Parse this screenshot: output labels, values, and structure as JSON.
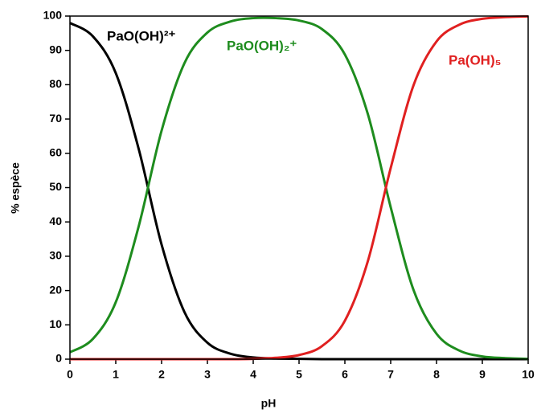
{
  "chart_data": {
    "type": "line",
    "xlabel": "pH",
    "ylabel": "% espèce",
    "x": [
      0,
      0.5,
      1,
      1.5,
      2,
      2.5,
      3,
      3.5,
      4,
      4.5,
      5,
      5.5,
      6,
      6.5,
      7,
      7.5,
      8,
      8.5,
      9,
      9.5,
      10
    ],
    "series": [
      {
        "name": "PaO(OH)²⁺",
        "color": "#000000",
        "values": [
          98.0,
          94.1,
          83.4,
          61.3,
          33.4,
          13.7,
          4.8,
          1.6,
          0.5,
          0.2,
          0.1,
          0,
          0,
          0,
          0,
          0,
          0,
          0,
          0,
          0,
          0
        ]
      },
      {
        "name": "PaO(OH)₂⁺",
        "color": "#1e8c1e",
        "values": [
          2.0,
          5.9,
          16.6,
          38.7,
          66.6,
          86.3,
          95.2,
          98.4,
          99.4,
          99.4,
          98.7,
          96.2,
          88.8,
          71.5,
          44.3,
          20.1,
          7.4,
          2.5,
          0.8,
          0.3,
          0.1
        ]
      },
      {
        "name": "Pa(OH)₅",
        "color": "#e02020",
        "values": [
          0,
          0,
          0,
          0,
          0,
          0,
          0,
          0,
          0.1,
          0.4,
          1.2,
          3.8,
          11.2,
          28.5,
          55.7,
          79.9,
          92.6,
          97.5,
          99.2,
          99.7,
          99.9
        ]
      }
    ],
    "xlim": [
      0,
      10
    ],
    "xticks": [
      0,
      1,
      2,
      3,
      4,
      5,
      6,
      7,
      8,
      9,
      10
    ],
    "ylim": [
      0,
      100
    ],
    "yticks": [
      0,
      10,
      20,
      30,
      40,
      50,
      60,
      70,
      80,
      90,
      100
    ]
  }
}
